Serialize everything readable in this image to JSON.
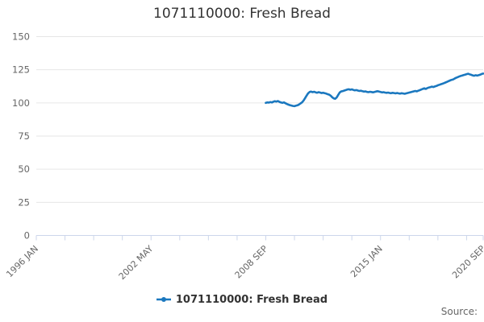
{
  "chart_data": {
    "type": "line",
    "title": "1071110000: Fresh Bread",
    "credits_label": "Source:",
    "grid": true,
    "legend_position": "bottom",
    "x_axis": {
      "start_label": "1996 JAN",
      "total_months": 296,
      "minor_tick_interval_months": 19,
      "labeled_ticks": [
        {
          "month": 0,
          "label": "1996 JAN"
        },
        {
          "month": 76,
          "label": "2002 MAY"
        },
        {
          "month": 152,
          "label": "2008 SEP"
        },
        {
          "month": 228,
          "label": "2015 JAN"
        },
        {
          "month": 296,
          "label": "2020 SEP"
        }
      ]
    },
    "y_axis": {
      "min": 0,
      "max": 150,
      "ticks": [
        0,
        25,
        50,
        75,
        100,
        125,
        150
      ]
    },
    "series": [
      {
        "name": "1071110000: Fresh Bread",
        "color": "#1b78bf",
        "start_month": 152,
        "start_period": "2008 SEP",
        "end_period": "2020 SEP",
        "values": [
          100.0,
          100.4,
          100.2,
          100.6,
          100.3,
          100.9,
          101.3,
          101.0,
          101.4,
          100.8,
          100.3,
          100.0,
          100.4,
          99.8,
          99.2,
          98.7,
          98.3,
          98.0,
          97.7,
          97.5,
          97.9,
          98.2,
          98.8,
          99.6,
          100.4,
          101.8,
          103.5,
          105.4,
          107.2,
          108.2,
          108.5,
          108.1,
          108.4,
          108.0,
          107.7,
          108.1,
          107.8,
          107.4,
          107.7,
          107.3,
          107.0,
          106.6,
          106.2,
          105.4,
          104.3,
          103.4,
          103.1,
          104.2,
          106.1,
          107.9,
          108.7,
          108.9,
          109.3,
          109.7,
          110.1,
          110.3,
          109.9,
          110.2,
          109.8,
          109.5,
          109.7,
          109.3,
          109.0,
          109.2,
          108.8,
          108.5,
          108.7,
          108.3,
          108.1,
          108.4,
          108.2,
          108.0,
          108.3,
          108.6,
          108.8,
          108.5,
          108.2,
          107.9,
          108.1,
          107.8,
          107.6,
          107.8,
          107.5,
          107.3,
          107.6,
          107.4,
          107.2,
          107.5,
          107.2,
          107.0,
          107.3,
          107.1,
          106.9,
          107.2,
          107.5,
          107.8,
          108.1,
          108.4,
          108.7,
          109.0,
          108.7,
          109.2,
          109.6,
          110.1,
          110.6,
          111.0,
          110.5,
          111.2,
          111.6,
          111.9,
          112.3,
          112.0,
          112.4,
          112.8,
          113.3,
          113.7,
          114.1,
          114.5,
          114.9,
          115.4,
          115.9,
          116.4,
          116.9,
          117.4,
          117.7,
          118.3,
          118.9,
          119.4,
          119.9,
          120.3,
          120.6,
          121.0,
          121.3,
          121.7,
          122.0,
          121.6,
          121.2,
          120.8,
          120.5,
          120.9,
          120.6,
          120.9,
          121.3,
          121.8,
          122.1
        ]
      }
    ],
    "colors": {
      "line": "#1b78bf",
      "grid": "#e6e6e6",
      "axis": "#ccd6eb",
      "tick_label": "#666666",
      "title_text": "#333333",
      "legend_text": "#333333",
      "credits_text": "#666666",
      "background": "#ffffff"
    }
  }
}
